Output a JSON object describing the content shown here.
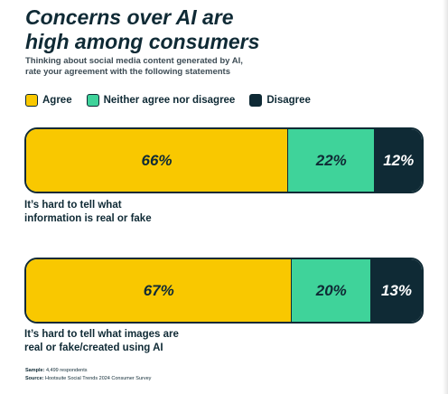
{
  "title_line1": "Concerns over AI are",
  "title_line2": "high among consumers",
  "subtitle_line1": "Thinking about social media content generated by AI,",
  "subtitle_line2": "rate your agreement with the following statements",
  "legend": [
    {
      "label": "Agree",
      "color": "#f9c800"
    },
    {
      "label": "Neither agree nor disagree",
      "color": "#3fd39a"
    },
    {
      "label": "Disagree",
      "color": "#0f2a35"
    }
  ],
  "chart_data": {
    "type": "bar",
    "orientation": "horizontal",
    "stacked": true,
    "legend_position": "top-left",
    "series": [
      {
        "name": "Agree",
        "values": [
          66,
          67
        ],
        "color": "#f9c800"
      },
      {
        "name": "Neither agree nor disagree",
        "values": [
          22,
          20
        ],
        "color": "#3fd39a"
      },
      {
        "name": "Disagree",
        "values": [
          12,
          13
        ],
        "color": "#0f2a35"
      }
    ],
    "categories": [
      "It’s hard to tell what information is real or fake",
      "It’s hard to tell what images are real or fake/created using AI"
    ],
    "value_labels": [
      [
        "66%",
        "22%",
        "12%"
      ],
      [
        "67%",
        "20%",
        "13%"
      ]
    ],
    "title": "Concerns over AI are high among consumers",
    "subtitle": "Thinking about social media content generated by AI, rate your agreement with the following statements",
    "xlim": [
      0,
      100
    ]
  },
  "statements": [
    {
      "line1": "It’s hard to tell what",
      "line2": "information is real or fake"
    },
    {
      "line1": "It’s hard to tell what images are",
      "line2": "real or fake/created using AI"
    }
  ],
  "footnote": {
    "sample_label": "Sample:",
    "sample_value": "4,499 respondents",
    "source_label": "Source:",
    "source_value": "Hootsuite Social Trends 2024 Consumer Survey"
  }
}
